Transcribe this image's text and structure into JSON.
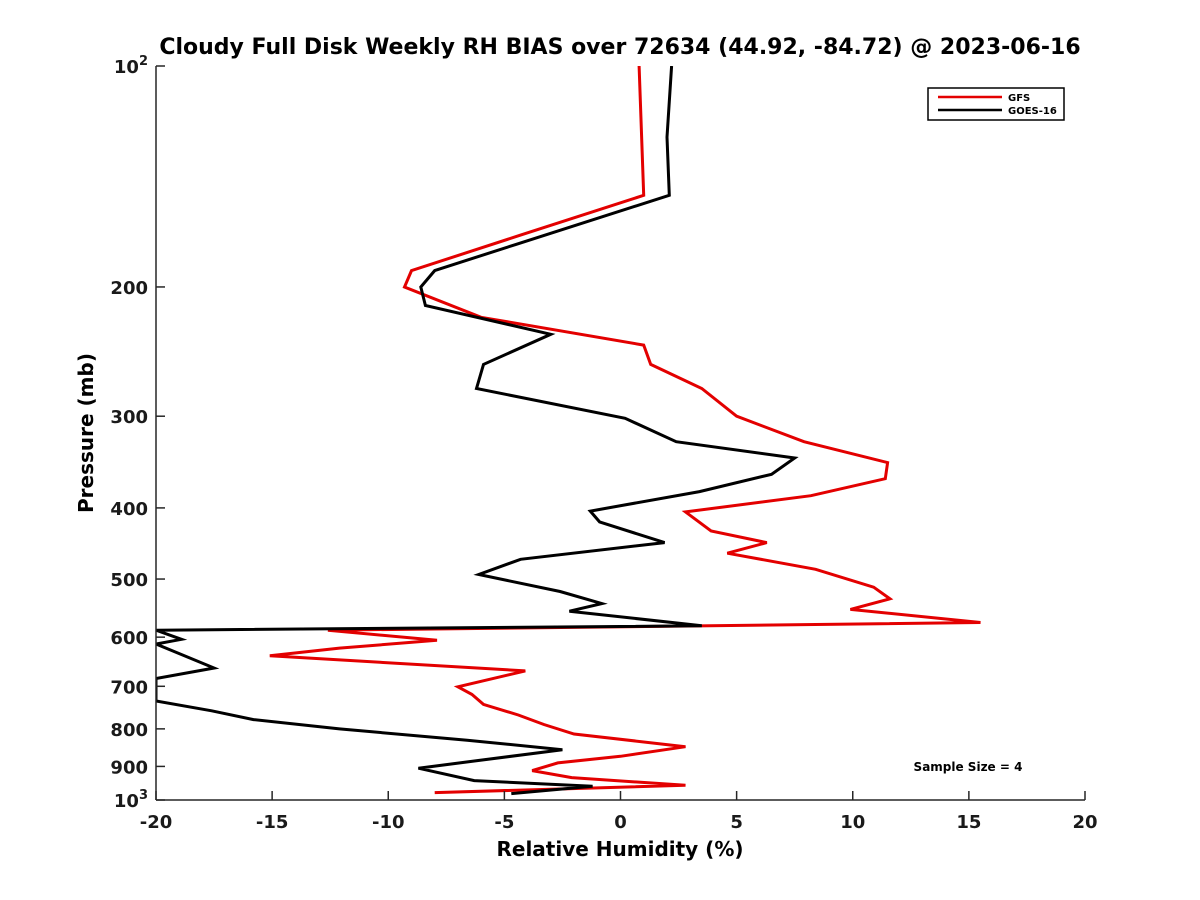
{
  "chart_data": {
    "type": "line",
    "title": "Cloudy Full Disk Weekly RH BIAS over 72634 (44.92, -84.72) @ 2023-06-16",
    "xlabel": "Relative Humidity (%)",
    "ylabel": "Pressure (mb)",
    "xlim": [
      -20,
      20
    ],
    "ylim": [
      100,
      1000
    ],
    "y_scale": "log",
    "y_reversed": true,
    "grid": false,
    "legend_position": "top-right",
    "annotation": "Sample Size = 4",
    "x_ticks": [
      -20,
      -15,
      -10,
      -5,
      0,
      5,
      10,
      15,
      20
    ],
    "y_ticks": [
      {
        "value": 100,
        "label": "10",
        "sup": "2"
      },
      {
        "value": 200,
        "label": "200"
      },
      {
        "value": 300,
        "label": "300"
      },
      {
        "value": 400,
        "label": "400"
      },
      {
        "value": 500,
        "label": "500"
      },
      {
        "value": 600,
        "label": "600"
      },
      {
        "value": 700,
        "label": "700"
      },
      {
        "value": 800,
        "label": "800"
      },
      {
        "value": 900,
        "label": "900"
      },
      {
        "value": 1000,
        "label": "10",
        "sup": "3"
      }
    ],
    "series": [
      {
        "name": "GFS",
        "color": "#e30000",
        "points": [
          [
            0.8,
            100
          ],
          [
            1.0,
            150
          ],
          [
            -4.3,
            170
          ],
          [
            -9.0,
            190
          ],
          [
            -9.3,
            200
          ],
          [
            -6.0,
            220
          ],
          [
            1.0,
            240
          ],
          [
            1.3,
            255
          ],
          [
            3.5,
            275
          ],
          [
            5.0,
            300
          ],
          [
            7.9,
            325
          ],
          [
            11.5,
            347
          ],
          [
            11.4,
            365
          ],
          [
            8.2,
            385
          ],
          [
            2.8,
            405
          ],
          [
            3.9,
            430
          ],
          [
            6.3,
            446
          ],
          [
            4.6,
            461
          ],
          [
            8.4,
            485
          ],
          [
            10.9,
            513
          ],
          [
            11.6,
            532
          ],
          [
            9.9,
            550
          ],
          [
            15.5,
            573
          ],
          [
            -12.6,
            587
          ],
          [
            -7.9,
            606
          ],
          [
            -12.1,
            621
          ],
          [
            -15.1,
            636
          ],
          [
            -4.1,
            667
          ],
          [
            -7.0,
            701
          ],
          [
            -6.4,
            718
          ],
          [
            -5.9,
            741
          ],
          [
            -4.4,
            766
          ],
          [
            -3.3,
            789
          ],
          [
            -2.0,
            813
          ],
          [
            2.8,
            846
          ],
          [
            0.0,
            872
          ],
          [
            -2.7,
            890
          ],
          [
            -3.8,
            912
          ],
          [
            -2.1,
            932
          ],
          [
            2.8,
            955
          ],
          [
            -8.0,
            977
          ]
        ]
      },
      {
        "name": "GOES-16",
        "color": "#000000",
        "points": [
          [
            2.2,
            100
          ],
          [
            2.0,
            125
          ],
          [
            2.1,
            150
          ],
          [
            -4.5,
            175
          ],
          [
            -8.0,
            190
          ],
          [
            -8.6,
            200
          ],
          [
            -8.4,
            212
          ],
          [
            -3.0,
            232
          ],
          [
            -5.9,
            255
          ],
          [
            -6.2,
            275
          ],
          [
            0.2,
            302
          ],
          [
            2.4,
            325
          ],
          [
            7.5,
            342
          ],
          [
            6.5,
            360
          ],
          [
            3.4,
            380
          ],
          [
            -1.3,
            404
          ],
          [
            -0.9,
            418
          ],
          [
            1.9,
            446
          ],
          [
            -4.3,
            470
          ],
          [
            -6.1,
            493
          ],
          [
            -2.6,
            520
          ],
          [
            -0.8,
            540
          ],
          [
            -2.2,
            553
          ],
          [
            3.5,
            579
          ],
          [
            -20.0,
            587
          ],
          [
            -18.9,
            604
          ],
          [
            -20.0,
            613
          ],
          [
            -17.5,
            661
          ],
          [
            -20.0,
            683
          ],
          [
            -20.0,
            733
          ],
          [
            -17.6,
            756
          ],
          [
            -15.8,
            777
          ],
          [
            -12.1,
            800
          ],
          [
            -6.6,
            829
          ],
          [
            -2.5,
            854
          ],
          [
            -8.7,
            905
          ],
          [
            -6.3,
            941
          ],
          [
            -1.2,
            958
          ],
          [
            -4.7,
            980
          ]
        ]
      }
    ]
  }
}
